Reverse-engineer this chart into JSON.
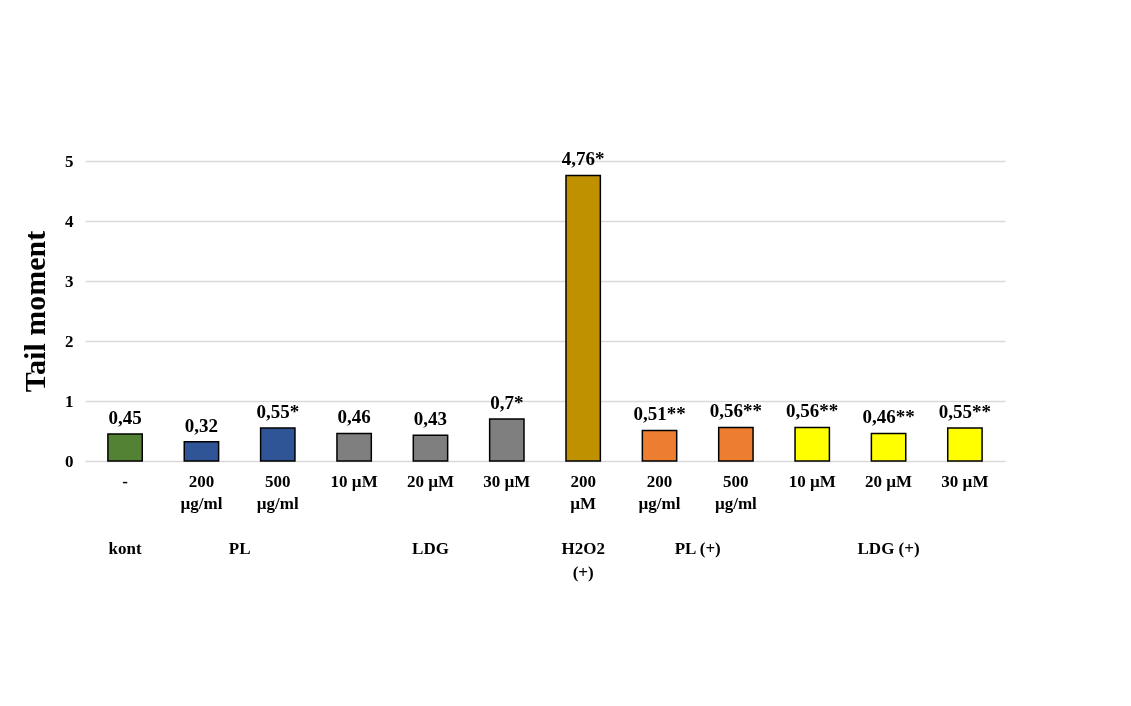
{
  "chart_data": {
    "type": "bar",
    "ylabel": "Tail moment",
    "categories": [
      "-",
      "200 µg/ml",
      "500 µg/ml",
      "10 µM",
      "20 µM",
      "30 µM",
      "200 µM",
      "200 µg/ml",
      "500 µg/ml",
      "10 µM",
      "20 µM",
      "30 µM"
    ],
    "values": [
      0.45,
      0.32,
      0.55,
      0.46,
      0.43,
      0.7,
      4.76,
      0.51,
      0.56,
      0.56,
      0.46,
      0.55
    ],
    "colors": [
      "#548235",
      "#2f5597",
      "#2f5597",
      "#7f7f7f",
      "#7f7f7f",
      "#7f7f7f",
      "#bf9000",
      "#ed7d31",
      "#ed7d31",
      "#ffff00",
      "#ffff00",
      "#ffff00"
    ],
    "value_labels": [
      "0,45",
      "0,32",
      "0,55*",
      "0,46",
      "0,43",
      "0,7*",
      "4,76*",
      "0,51**",
      "0,56**",
      "0,56**",
      "0,46**",
      "0,55**"
    ],
    "annotations": [
      "kont",
      "PL",
      "LDG",
      "H2O2 (+)",
      "PL (+)",
      "LDG (+)"
    ],
    "ylim": [
      0,
      5
    ],
    "yticks": [
      0,
      1,
      2,
      3,
      4,
      5
    ],
    "grid": "y"
  }
}
